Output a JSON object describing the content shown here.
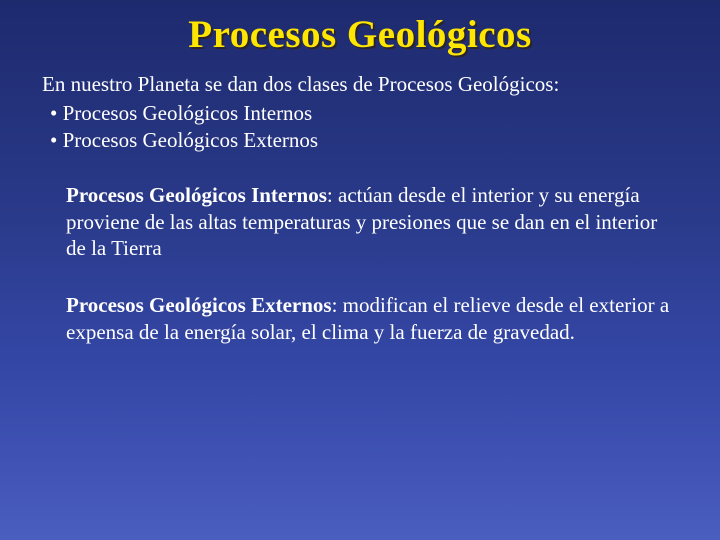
{
  "slide": {
    "title": "Procesos Geológicos",
    "intro": "En nuestro Planeta se dan dos clases de Procesos Geológicos:",
    "bullets": [
      " Procesos Geológicos Internos",
      "Procesos Geológicos Externos"
    ],
    "paragraphs": [
      {
        "lead": " Procesos Geológicos Internos",
        "rest": ": actúan desde el interior y su energía proviene de las altas temperaturas y presiones que se dan en el interior de la Tierra"
      },
      {
        "lead": " Procesos Geológicos Externos",
        "rest": ": modifican el relieve desde el exterior a expensa de la energía solar, el clima y la fuerza de gravedad."
      }
    ]
  },
  "style": {
    "title_fontsize": 39,
    "title_color": "#ffe600",
    "title_shadow": "rgba(50,30,0,0.6)",
    "body_fontsize": 21,
    "body_color": "#ffffff",
    "bg_gradient_top": "#1e2a6e",
    "bg_gradient_bottom": "#4a5ec0",
    "font_family": "Times New Roman"
  }
}
